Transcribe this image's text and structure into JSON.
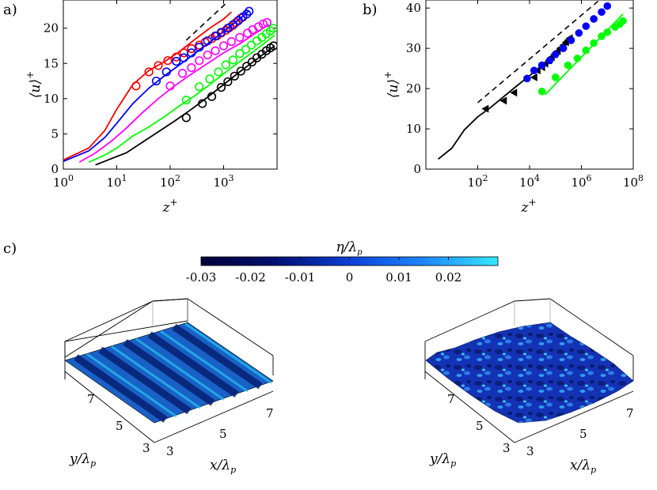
{
  "panel_labels": [
    "a)",
    "b)",
    "c)"
  ],
  "colors": {
    "red": "#ff0000",
    "blue": "#0000ff",
    "magenta": "#ff00ff",
    "green": "#00ff00",
    "black": "#000000"
  },
  "chart_data": [
    {
      "type": "scatter",
      "panel": "a)",
      "xlabel": "z+",
      "ylabel": "⟨u⟩+",
      "xscale": "log",
      "xlim": [
        1,
        10000
      ],
      "ylim": [
        0,
        24
      ],
      "xticks": [
        "10^0",
        "10^1",
        "10^2",
        "10^3"
      ],
      "yticks": [
        "0",
        "5",
        "10",
        "15",
        "20"
      ],
      "reference_line": {
        "style": "dashed",
        "color": "#000000",
        "x": [
          200,
          1100
        ],
        "y": [
          18.3,
          23.5
        ]
      },
      "series": [
        {
          "color": "#ff0000",
          "line": {
            "x": [
              1,
              3,
              6,
              10,
              20,
              40,
              80,
              150,
              300,
              600,
              1000,
              1400
            ],
            "y": [
              1.3,
              3.0,
              5.5,
              8.5,
              12.0,
              14.0,
              15.3,
              16.7,
              18.5,
              20.2,
              21.3,
              22.3
            ]
          },
          "markers": {
            "x": [
              23,
              40,
              60,
              90,
              130,
              180,
              250,
              350,
              450,
              600,
              750,
              900,
              1100,
              1300,
              1500,
              1700,
              1900,
              2100
            ],
            "y": [
              11.8,
              13.8,
              14.7,
              15.4,
              15.9,
              16.5,
              17.1,
              17.6,
              18.0,
              18.5,
              18.9,
              19.3,
              19.7,
              20.1,
              20.4,
              20.8,
              21.1,
              21.4
            ]
          }
        },
        {
          "color": "#0000ff",
          "line": {
            "x": [
              1,
              3,
              6,
              10,
              20,
              40,
              80,
              150,
              300,
              600,
              1200,
              2000,
              3000
            ],
            "y": [
              1.1,
              2.6,
              4.5,
              6.5,
              9.3,
              11.5,
              13.3,
              14.8,
              16.5,
              18.2,
              20.0,
              21.3,
              22.5
            ]
          },
          "markers": {
            "x": [
              55,
              85,
              130,
              180,
              250,
              350,
              500,
              700,
              900,
              1200,
              1500,
              1900,
              2300,
              2700,
              3000
            ],
            "y": [
              12.5,
              13.8,
              15.3,
              15.8,
              16.5,
              17.3,
              18.2,
              18.9,
              19.4,
              20.0,
              20.5,
              21.1,
              21.6,
              22.0,
              22.4
            ]
          }
        },
        {
          "color": "#ff00ff",
          "line": {
            "x": [
              2,
              4,
              8,
              15,
              30,
              60,
              120,
              250,
              500,
              1000,
              2000,
              4000,
              7000
            ],
            "y": [
              1.0,
              2.3,
              4.0,
              5.8,
              8.0,
              10.0,
              11.8,
              13.5,
              15.0,
              16.5,
              17.8,
              19.3,
              20.5
            ]
          },
          "markers": {
            "x": [
              100,
              170,
              250,
              350,
              500,
              700,
              1000,
              1400,
              2000,
              2800,
              3500,
              4500,
              5500,
              6500
            ],
            "y": [
              11.8,
              13.6,
              14.4,
              15.4,
              16.2,
              16.8,
              17.5,
              18.1,
              18.7,
              19.3,
              19.8,
              20.2,
              20.6,
              20.8
            ]
          }
        },
        {
          "color": "#00ff00",
          "line": {
            "x": [
              3,
              6,
              10,
              20,
              40,
              80,
              150,
              300,
              600,
              1200,
              2500,
              5000,
              9000
            ],
            "y": [
              1.0,
              2.0,
              3.0,
              4.7,
              6.0,
              7.5,
              9.0,
              10.5,
              12.2,
              14.0,
              15.8,
              17.5,
              19.0
            ]
          },
          "markers": {
            "x": [
              200,
              350,
              550,
              800,
              1100,
              1500,
              2000,
              2600,
              3300,
              4200,
              5200,
              6300,
              7500,
              8500
            ],
            "y": [
              9.8,
              11.7,
              12.8,
              13.8,
              14.8,
              15.5,
              16.4,
              17.0,
              17.6,
              18.2,
              18.7,
              19.2,
              19.6,
              20.0
            ]
          }
        },
        {
          "color": "#000000",
          "line": {
            "x": [
              4,
              8,
              15,
              30,
              60,
              120,
              250,
              500,
              1000,
              2000,
              4000,
              9000
            ],
            "y": [
              0.6,
              1.5,
              2.3,
              3.8,
              5.3,
              6.8,
              8.5,
              10.2,
              12.0,
              13.8,
              15.5,
              17.5
            ]
          },
          "markers": {
            "x": [
              200,
              400,
              600,
              900,
              1200,
              1600,
              2100,
              2700,
              3400,
              4200,
              5200,
              6300,
              7500,
              8600
            ],
            "y": [
              7.3,
              9.3,
              10.3,
              11.6,
              12.4,
              13.2,
              13.9,
              14.6,
              15.2,
              15.8,
              16.3,
              16.8,
              17.2,
              17.5
            ]
          }
        }
      ]
    },
    {
      "type": "scatter",
      "panel": "b)",
      "xlabel": "z+",
      "ylabel": "⟨u⟩+",
      "xscale": "log",
      "xlim": [
        1,
        100000000
      ],
      "ylim": [
        0,
        42
      ],
      "xticks": [
        "10^2",
        "10^4",
        "10^6",
        "10^8"
      ],
      "yticks": [
        "0",
        "10",
        "20",
        "30",
        "40"
      ],
      "reference_line": {
        "style": "dashed",
        "color": "#000000",
        "x": [
          100,
          5000000
        ],
        "y": [
          16.5,
          42
        ]
      },
      "series": [
        {
          "color": "#000000",
          "marker": "none",
          "line": {
            "x": [
              3,
              10,
              30,
              100,
              300,
              1000,
              3000,
              10000,
              30000,
              100000,
              300000
            ],
            "y": [
              2.5,
              5.2,
              9.7,
              13.0,
              15.2,
              18.0,
              20.5,
              23.2,
              25.7,
              28.5,
              31.5
            ]
          }
        },
        {
          "color": "#000000",
          "marker": "triangle-left",
          "points": {
            "x": [
              200,
              1000,
              2500,
              15000,
              20000,
              30000,
              40000,
              55000,
              70000,
              90000,
              120000,
              150000,
              200000,
              250000,
              300000,
              350000
            ],
            "y": [
              15.0,
              17.0,
              19.0,
              22.8,
              24.5,
              25.3,
              26.2,
              27.0,
              27.8,
              28.5,
              29.3,
              30.0,
              30.8,
              31.5,
              32.0,
              32.5
            ]
          }
        },
        {
          "color": "#0000ff",
          "marker": "circle",
          "points": {
            "x": [
              8000,
              15000,
              30000,
              60000,
              100000,
              200000,
              400000,
              800000,
              1500000,
              3000000,
              6000000,
              10000000
            ],
            "y": [
              22.5,
              24.5,
              25.8,
              27.0,
              28.5,
              30.0,
              32.0,
              33.8,
              35.5,
              37.3,
              39.0,
              40.5
            ]
          }
        },
        {
          "color": "#00ff00",
          "marker": "circle",
          "points": {
            "x": [
              30000,
              100000,
              300000,
              700000,
              1500000,
              3000000,
              6000000,
              10000000,
              20000000,
              30000000,
              40000000
            ],
            "y": [
              19.3,
              22.8,
              25.8,
              27.5,
              29.5,
              31.3,
              33.0,
              34.0,
              35.3,
              36.0,
              36.8
            ]
          },
          "line": {
            "x": [
              40000,
              40000000
            ],
            "y": [
              18.5,
              38.5
            ]
          }
        }
      ]
    }
  ],
  "colorbar": {
    "title": "η/λp",
    "ticks": [
      "-0.03",
      "-0.02",
      "-0.01",
      "0",
      "0.01",
      "0.02"
    ],
    "range": [
      -0.03,
      0.03
    ]
  },
  "surfaces": [
    {
      "xlabel": "x/λp",
      "ylabel": "y/λp",
      "xticks": [
        "3",
        "5",
        "7"
      ],
      "yticks": [
        "7",
        "5",
        "3"
      ],
      "pattern": "sinusoidal waves"
    },
    {
      "xlabel": "x/λp",
      "ylabel": "y/λp",
      "xticks": [
        "3",
        "5",
        "7"
      ],
      "yticks": [
        "7",
        "5",
        "3"
      ],
      "pattern": "random rough surface"
    }
  ]
}
